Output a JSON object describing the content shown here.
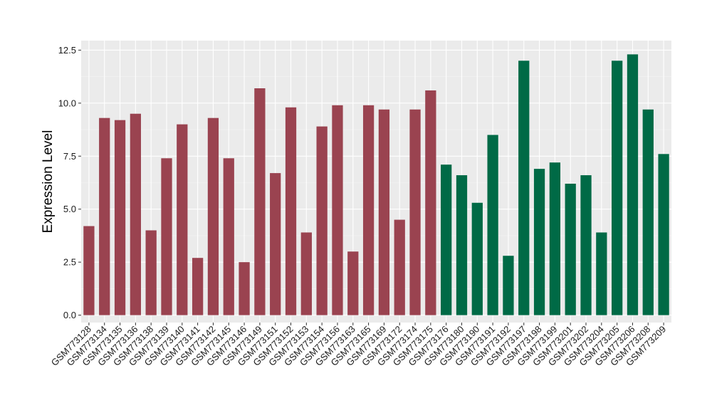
{
  "chart_data": {
    "type": "bar",
    "title": "",
    "xlabel": "",
    "ylabel": "Expression Level",
    "ylim": [
      -0.35,
      12.95
    ],
    "yticks": [
      0.0,
      2.5,
      5.0,
      7.5,
      10.0,
      12.5
    ],
    "ytick_labels": [
      "0.0",
      "2.5",
      "5.0",
      "7.5",
      "10.0",
      "12.5"
    ],
    "grid": true,
    "legend": "none",
    "colors": {
      "panel_background": "#ebebeb",
      "grid_major": "#ffffff",
      "grid_minor": "#f5f5f5",
      "group_a": "#9a4350",
      "group_b": "#006a46"
    },
    "categories": [
      "GSM773128",
      "GSM773134",
      "GSM773135",
      "GSM773136",
      "GSM773138",
      "GSM773139",
      "GSM773140",
      "GSM773141",
      "GSM773142",
      "GSM773145",
      "GSM773146",
      "GSM773149",
      "GSM773151",
      "GSM773152",
      "GSM773153",
      "GSM773154",
      "GSM773156",
      "GSM773163",
      "GSM773165",
      "GSM773169",
      "GSM773172",
      "GSM773174",
      "GSM773175",
      "GSM773176",
      "GSM773180",
      "GSM773190",
      "GSM773191",
      "GSM773192",
      "GSM773197",
      "GSM773198",
      "GSM773199",
      "GSM773201",
      "GSM773202",
      "GSM773204",
      "GSM773205",
      "GSM773206",
      "GSM773208",
      "GSM773209"
    ],
    "values": [
      4.2,
      9.3,
      9.2,
      9.5,
      4.0,
      7.4,
      9.0,
      2.7,
      9.3,
      7.4,
      2.5,
      10.7,
      6.7,
      9.8,
      3.9,
      8.9,
      9.9,
      3.0,
      9.9,
      9.7,
      4.5,
      9.7,
      10.6,
      7.1,
      6.6,
      5.3,
      8.5,
      2.8,
      12.0,
      6.9,
      7.2,
      6.2,
      6.6,
      3.9,
      12.0,
      12.3,
      9.7,
      7.6
    ],
    "bar_groups": [
      "a",
      "a",
      "a",
      "a",
      "a",
      "a",
      "a",
      "a",
      "a",
      "a",
      "a",
      "a",
      "a",
      "a",
      "a",
      "a",
      "a",
      "a",
      "a",
      "a",
      "a",
      "a",
      "a",
      "b",
      "b",
      "b",
      "b",
      "b",
      "b",
      "b",
      "b",
      "b",
      "b",
      "b",
      "b",
      "b",
      "b",
      "b"
    ]
  }
}
